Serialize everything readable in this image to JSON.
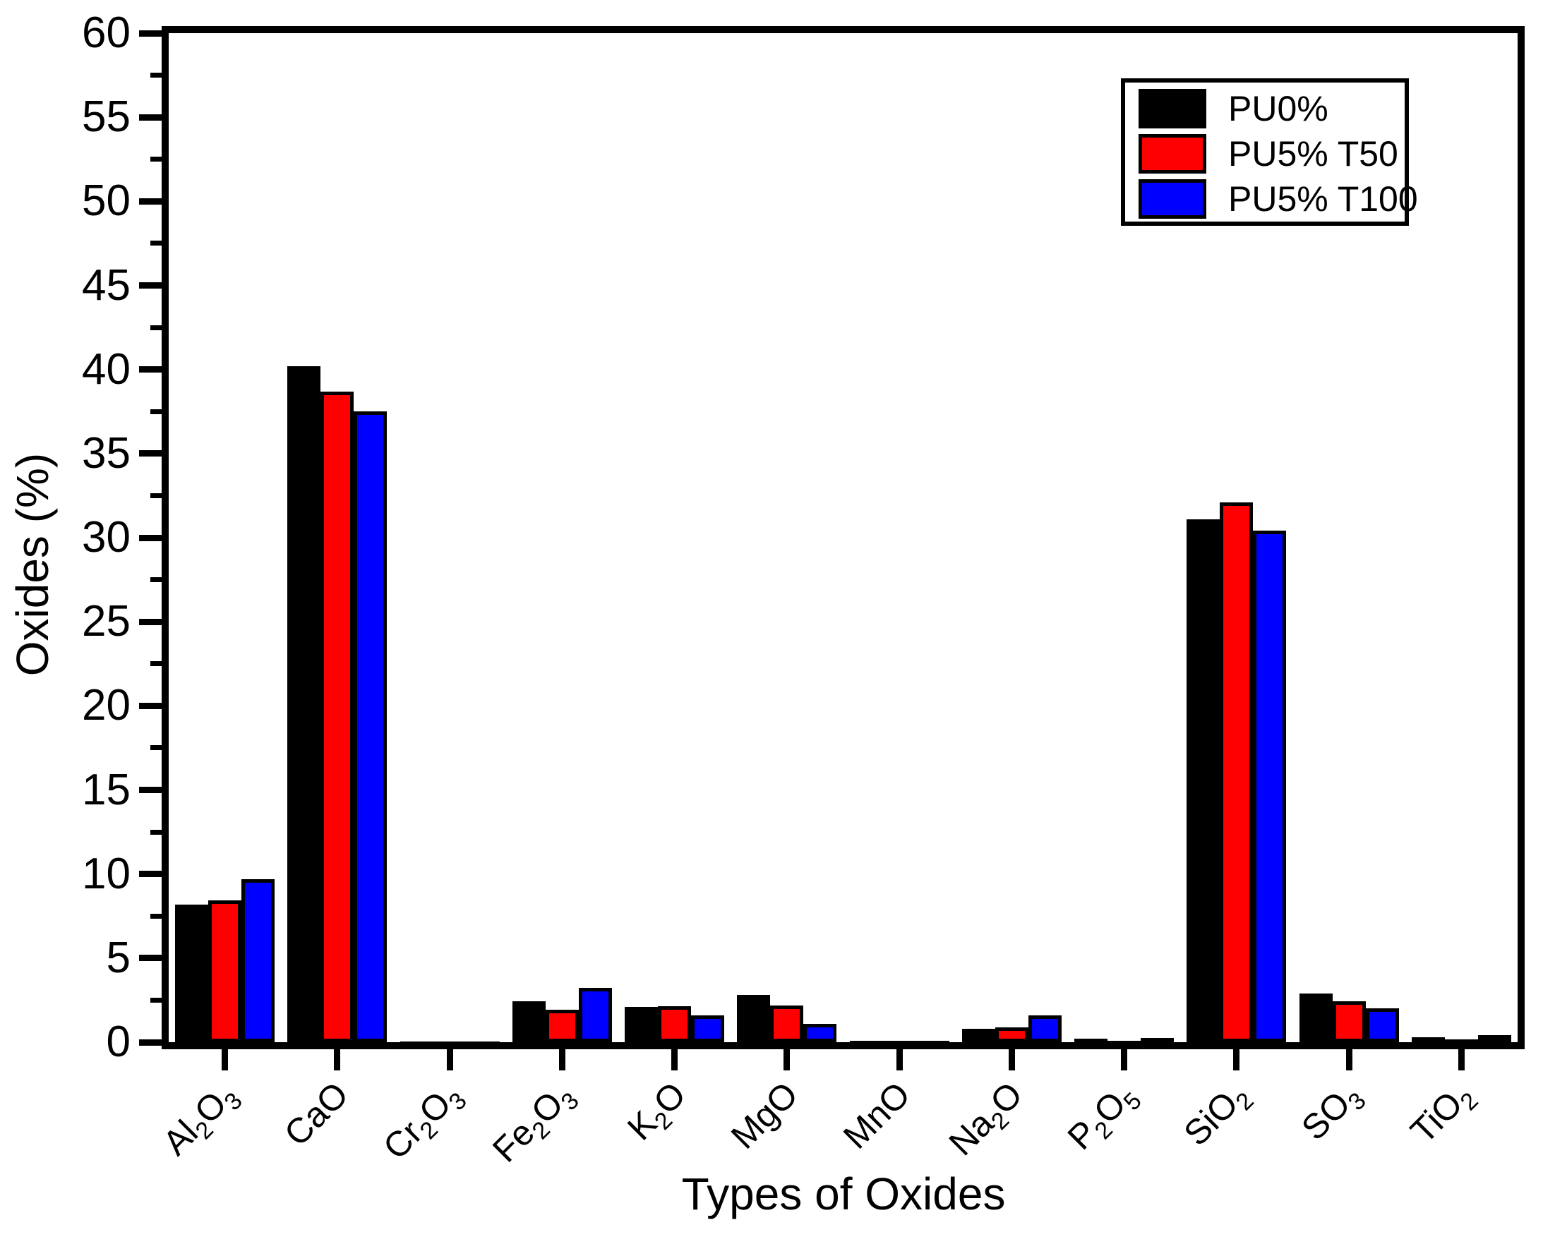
{
  "chart_data": {
    "type": "bar",
    "title": "",
    "xlabel": "Types of Oxides",
    "ylabel": "Oxides (%)",
    "ylim": [
      0,
      60
    ],
    "y_major_step": 5,
    "y_minor_step": 2.5,
    "y_tick_labels": [
      "0",
      "5",
      "10",
      "15",
      "20",
      "25",
      "30",
      "35",
      "40",
      "45",
      "50",
      "55",
      "60"
    ],
    "grid": false,
    "legend_position": "top-right",
    "background_color": "#ffffff",
    "axis_color": "#000000",
    "categories": [
      "Al2O3",
      "CaO",
      "Cr2O3",
      "Fe2O3",
      "K2O",
      "MgO",
      "MnO",
      "Na2O",
      "P2O5",
      "SiO2",
      "SO3",
      "TiO2"
    ],
    "series": [
      {
        "name": "PU0%",
        "color": "#000000",
        "values": [
          8.2,
          40.2,
          0.05,
          2.45,
          2.1,
          2.8,
          0.1,
          0.8,
          0.2,
          31.1,
          2.9,
          0.3
        ]
      },
      {
        "name": "PU5% T50",
        "color": "#ff0000",
        "values": [
          8.45,
          38.7,
          0.05,
          1.95,
          2.15,
          2.2,
          0.1,
          0.9,
          0.1,
          32.1,
          2.45,
          0.15
        ]
      },
      {
        "name": "PU5% T100",
        "color": "#0000ff",
        "values": [
          9.7,
          37.5,
          0.05,
          3.25,
          1.6,
          1.1,
          0.1,
          1.6,
          0.25,
          30.4,
          2.0,
          0.4
        ]
      }
    ]
  }
}
